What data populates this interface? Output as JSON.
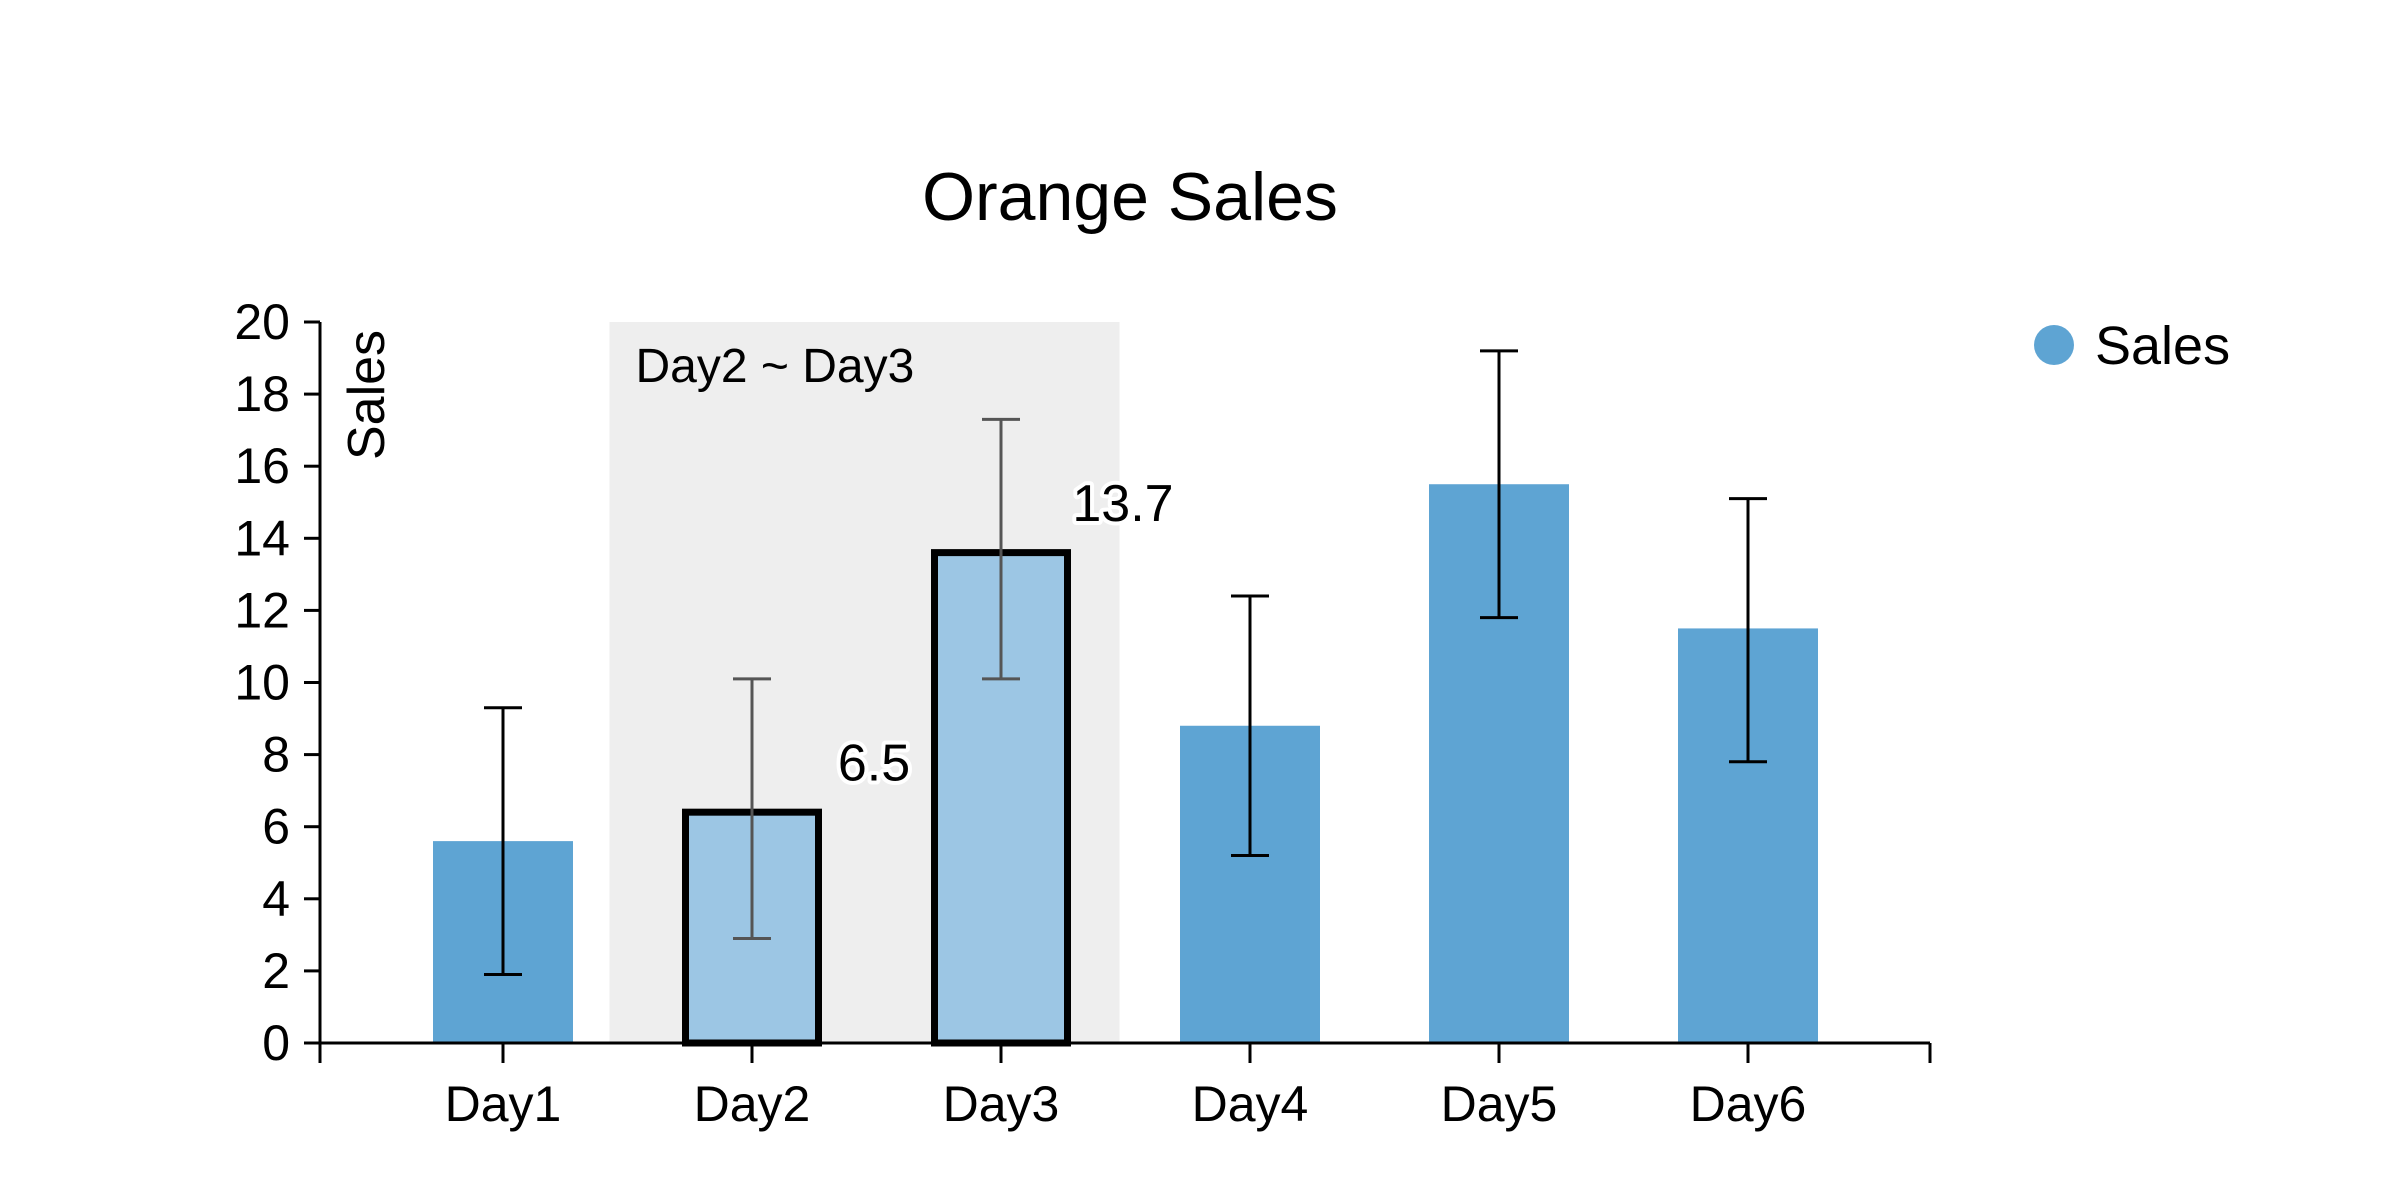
{
  "chart_data": {
    "type": "bar",
    "title": "Orange Sales",
    "ylabel": "Sales",
    "xlabel": "",
    "ylim": [
      0,
      20
    ],
    "yticks": [
      0,
      2,
      4,
      6,
      8,
      10,
      12,
      14,
      16,
      18,
      20
    ],
    "grid": false,
    "legend": {
      "position": "top-right",
      "entries": [
        "Sales"
      ]
    },
    "categories": [
      "Day1",
      "Day2",
      "Day3",
      "Day4",
      "Day5",
      "Day6"
    ],
    "series": [
      {
        "name": "Sales",
        "color": "#5ea4d3",
        "values": [
          5.6,
          6.5,
          13.7,
          8.8,
          15.5,
          11.5
        ],
        "error_low": [
          1.9,
          2.9,
          10.1,
          5.2,
          11.8,
          7.8
        ],
        "error_high": [
          9.3,
          10.1,
          17.3,
          12.4,
          19.2,
          15.1
        ]
      }
    ],
    "highlight": {
      "label": "Day2 ~ Day3",
      "range": [
        "Day2",
        "Day3"
      ],
      "bar_color": "#9cc6e4",
      "band_color": "#eeeeee",
      "value_labels": [
        "6.5",
        "13.7"
      ]
    }
  }
}
